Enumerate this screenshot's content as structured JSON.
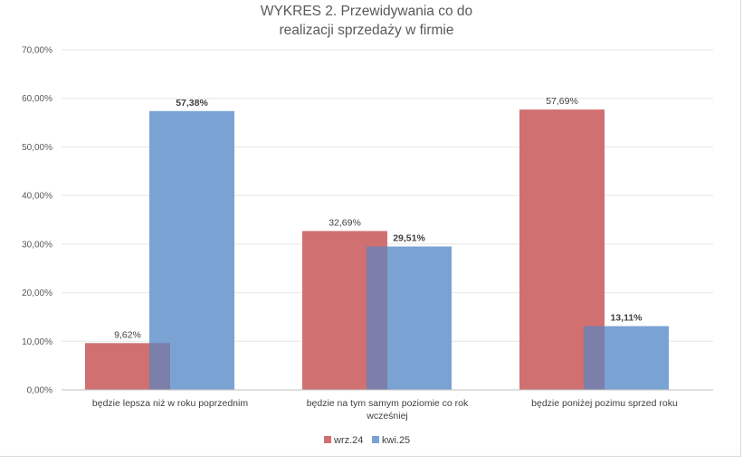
{
  "chart_data": {
    "type": "bar",
    "title_lines": [
      "WYKRES 2. Przewidywania co do",
      "realizacji sprzedaży w firmie"
    ],
    "categories": [
      [
        "będzie lepsza niż w roku poprzednim"
      ],
      [
        "będzie na tym samym poziomie co rok",
        "wcześniej"
      ],
      [
        "będzie poniżej pozimu sprzed roku"
      ]
    ],
    "series": [
      {
        "name": "wrz.24",
        "color": "#d07070",
        "values": [
          9.62,
          32.69,
          57.69
        ],
        "labels": [
          "9,62%",
          "32,69%",
          "57,69%"
        ],
        "bold_labels": false
      },
      {
        "name": "kwi.25",
        "color": "#7aa3d4",
        "values": [
          57.38,
          29.51,
          13.11
        ],
        "labels": [
          "57,38%",
          "29,51%",
          "13,11%"
        ],
        "bold_labels": true
      }
    ],
    "overlap_color": "#7b7fa9",
    "ylim": [
      0,
      70
    ],
    "y_ticks": [
      "0,00%",
      "10,00%",
      "20,00%",
      "30,00%",
      "40,00%",
      "50,00%",
      "60,00%",
      "70,00%"
    ],
    "grid": true,
    "legend_position": "bottom"
  }
}
